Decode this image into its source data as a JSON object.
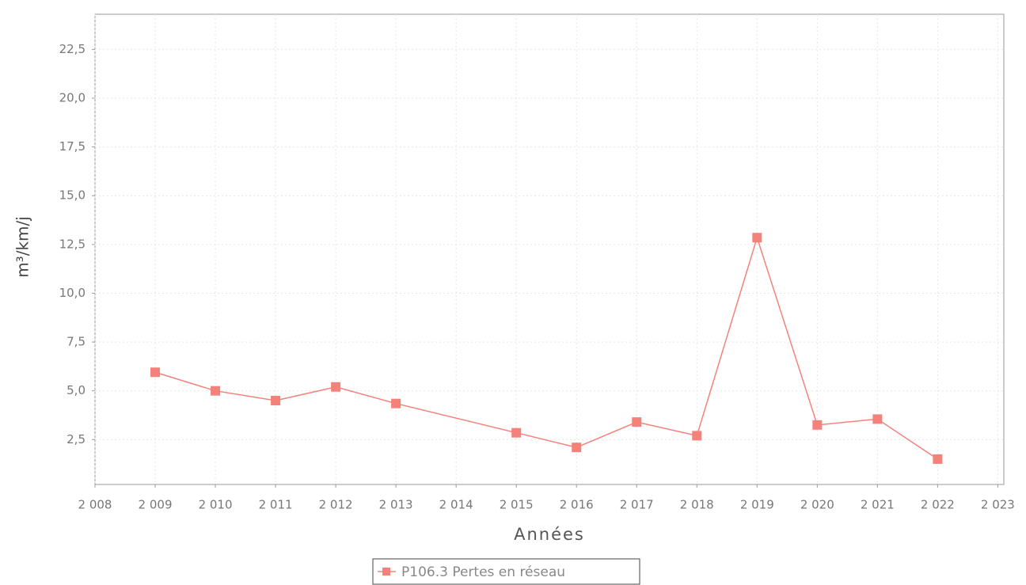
{
  "chart_data": {
    "type": "line",
    "x_label": "Années",
    "y_label": "m³/km/j",
    "x": [
      2009,
      2010,
      2011,
      2012,
      2013,
      2015,
      2016,
      2017,
      2018,
      2019,
      2020,
      2021,
      2022
    ],
    "series": [
      {
        "name": "P106.3 Pertes en réseau",
        "color": "#f4827a",
        "values": [
          5.95,
          5.0,
          4.5,
          5.2,
          4.35,
          2.85,
          2.1,
          3.4,
          2.7,
          12.85,
          3.25,
          3.55,
          1.5
        ]
      }
    ],
    "xlim": [
      2008,
      2023.1
    ],
    "xticks": [
      {
        "value": 2008,
        "label": "2 008"
      },
      {
        "value": 2009,
        "label": "2 009"
      },
      {
        "value": 2010,
        "label": "2 010"
      },
      {
        "value": 2011,
        "label": "2 011"
      },
      {
        "value": 2012,
        "label": "2 012"
      },
      {
        "value": 2013,
        "label": "2 013"
      },
      {
        "value": 2014,
        "label": "2 014"
      },
      {
        "value": 2015,
        "label": "2 015"
      },
      {
        "value": 2016,
        "label": "2 016"
      },
      {
        "value": 2017,
        "label": "2 017"
      },
      {
        "value": 2018,
        "label": "2 018"
      },
      {
        "value": 2019,
        "label": "2 019"
      },
      {
        "value": 2020,
        "label": "2 020"
      },
      {
        "value": 2021,
        "label": "2 021"
      },
      {
        "value": 2022,
        "label": "2 022"
      },
      {
        "value": 2023,
        "label": "2 023"
      }
    ],
    "ylim": [
      0.2,
      24.3
    ],
    "yticks": [
      {
        "value": 2.5,
        "label": "2,5"
      },
      {
        "value": 5,
        "label": "5,0"
      },
      {
        "value": 7.5,
        "label": "7,5"
      },
      {
        "value": 10,
        "label": "10,0"
      },
      {
        "value": 12.5,
        "label": "12,5"
      },
      {
        "value": 15,
        "label": "15,0"
      },
      {
        "value": 17.5,
        "label": "17,5"
      },
      {
        "value": 20,
        "label": "20,0"
      },
      {
        "value": 22.5,
        "label": "22,5"
      }
    ],
    "grid": true,
    "legend": "bottom"
  }
}
